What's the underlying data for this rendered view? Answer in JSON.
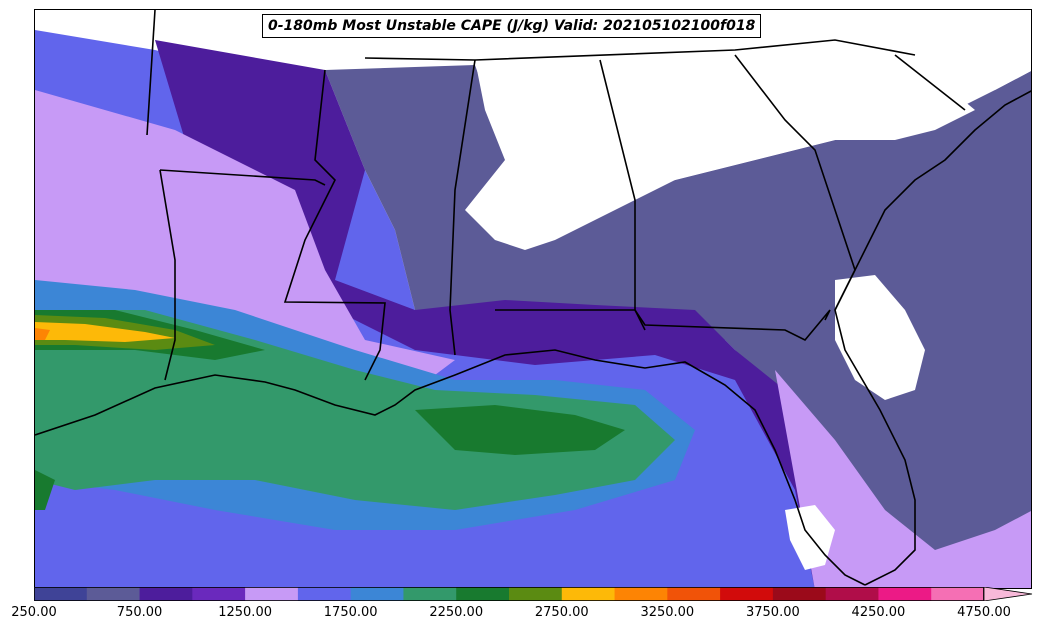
{
  "map": {
    "title": "0-180mb Most Unstable CAPE (J/kg) Valid: 202105102100f018",
    "variable": "Most Unstable CAPE",
    "units": "J/kg",
    "region": "Gulf Coast / Southeastern United States"
  },
  "colorbar": {
    "levels": [
      250,
      500,
      750,
      1000,
      1250,
      1500,
      1750,
      2000,
      2250,
      2500,
      2750,
      3000,
      3250,
      3500,
      3750,
      4000,
      4250,
      4500,
      4750
    ],
    "colors": [
      "#3f4397",
      "#5c5b97",
      "#4d1d9c",
      "#6a29bd",
      "#c79af6",
      "#6165ec",
      "#3c86d6",
      "#33996b",
      "#187a2f",
      "#5b8b12",
      "#fdb908",
      "#fd8404",
      "#f15308",
      "#d20b0b",
      "#9b0a1a",
      "#b00d49",
      "#ec1a86",
      "#f56fb4"
    ],
    "extend": "max",
    "tick_labels": [
      "250.00",
      "750.00",
      "1250.00",
      "1750.00",
      "2250.00",
      "2750.00",
      "3250.00",
      "3750.00",
      "4250.00",
      "4750.00"
    ]
  }
}
